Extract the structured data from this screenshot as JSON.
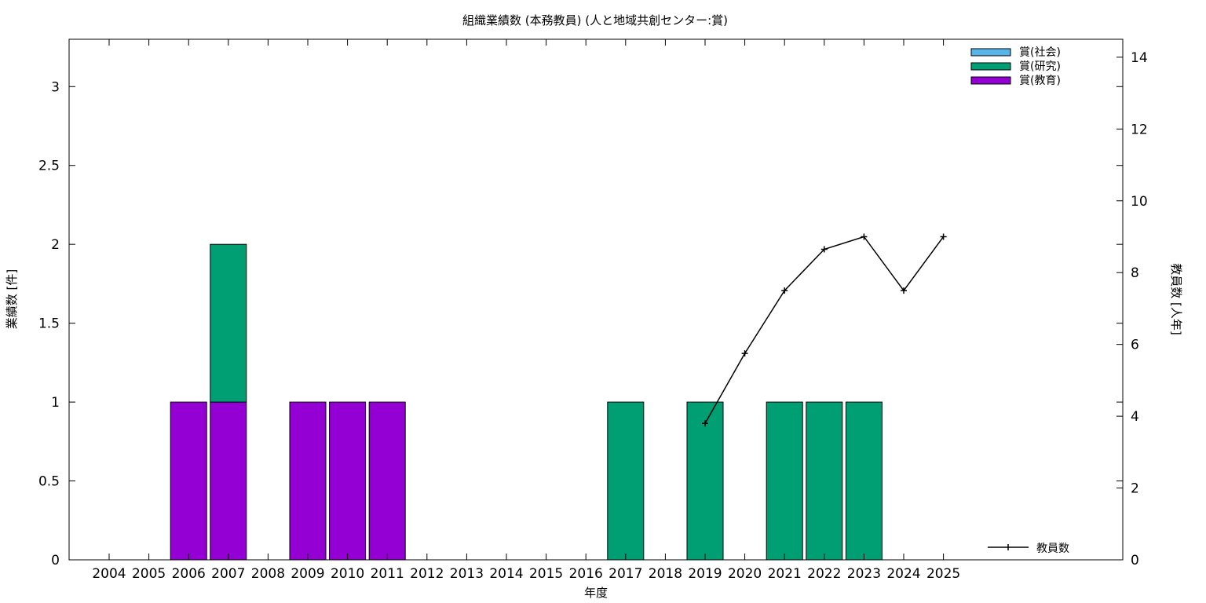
{
  "chart_data": {
    "type": "bar",
    "title": "組織業績数 (本務教員) (人と地域共創センター:賞)",
    "xlabel": "年度",
    "ylabel": "業績数 [件]",
    "y2label": "教員数 [人年]",
    "categories": [
      "2004",
      "2005",
      "2006",
      "2007",
      "2008",
      "2009",
      "2010",
      "2011",
      "2012",
      "2013",
      "2014",
      "2015",
      "2016",
      "2017",
      "2018",
      "2019",
      "2020",
      "2021",
      "2022",
      "2023",
      "2024",
      "2025"
    ],
    "stacked": true,
    "ylim": [
      0,
      3.3
    ],
    "yticks": [
      0,
      0.5,
      1,
      1.5,
      2,
      2.5,
      3
    ],
    "ytick_labels": [
      "0",
      "0.5",
      "1",
      "1.5",
      "2",
      "2.5",
      "3"
    ],
    "y2lim": [
      0,
      14.5
    ],
    "y2ticks": [
      0,
      2,
      4,
      6,
      8,
      10,
      12,
      14
    ],
    "legend_position": "top-right",
    "series": [
      {
        "name": "賞(社会)",
        "color": "#56b4e9",
        "values": [
          0,
          0,
          0,
          0,
          0,
          0,
          0,
          0,
          0,
          0,
          0,
          0,
          0,
          0,
          0,
          0,
          0,
          0,
          0,
          0,
          0,
          0
        ]
      },
      {
        "name": "賞(研究)",
        "color": "#009e73",
        "values": [
          0,
          0,
          0,
          1,
          0,
          0,
          0,
          0,
          0,
          0,
          0,
          0,
          0,
          1,
          0,
          1,
          0,
          1,
          1,
          1,
          0,
          0
        ]
      },
      {
        "name": "賞(教育)",
        "color": "#9400d3",
        "values": [
          0,
          0,
          1,
          1,
          0,
          1,
          1,
          1,
          0,
          0,
          0,
          0,
          0,
          0,
          0,
          0,
          0,
          0,
          0,
          0,
          0,
          0
        ]
      }
    ],
    "stack_order": [
      "賞(教育)",
      "賞(研究)",
      "賞(社会)"
    ],
    "line_series": {
      "name": "教員数",
      "axis": "y2",
      "color": "#000000",
      "x": [
        "2019",
        "2020",
        "2021",
        "2022",
        "2023",
        "2024",
        "2025"
      ],
      "values": [
        3.8,
        5.75,
        7.5,
        8.65,
        9.0,
        7.5,
        9.0
      ],
      "legend_position": "bottom-right"
    }
  }
}
